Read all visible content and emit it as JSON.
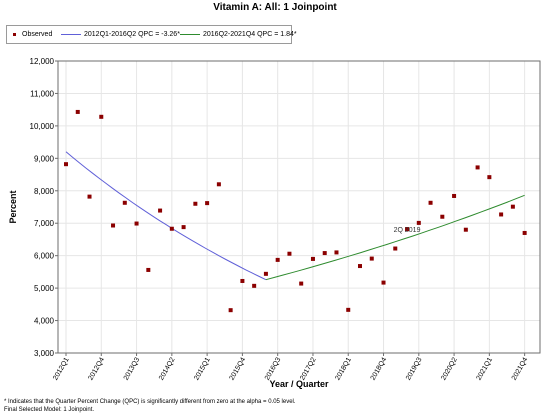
{
  "chart_data": {
    "type": "scatter",
    "title": "Vitamin A: All: 1 Joinpoint",
    "xlabel": "Year / Quarter",
    "ylabel": "Percent",
    "ylim": [
      3000,
      12000
    ],
    "yticks": [
      "3,000",
      "4,000",
      "5,000",
      "6,000",
      "7,000",
      "8,000",
      "9,000",
      "10,000",
      "11,000",
      "12,000"
    ],
    "ytick_values": [
      3000,
      4000,
      5000,
      6000,
      7000,
      8000,
      9000,
      10000,
      11000,
      12000
    ],
    "xtick_labels": [
      "2012Q1",
      "2012Q4",
      "2013Q3",
      "2014Q2",
      "2015Q1",
      "2015Q4",
      "2016Q3",
      "2017Q2",
      "2018Q1",
      "2018Q4",
      "2019Q3",
      "2020Q2",
      "2021Q1",
      "2021Q4"
    ],
    "legend_position": "top-left",
    "grid": true,
    "series": [
      {
        "name": "Observed",
        "color": "#8b0000",
        "x": [
          1,
          2,
          3,
          4,
          5,
          6,
          7,
          8,
          9,
          10,
          11,
          12,
          13,
          14,
          15,
          16,
          17,
          18,
          19,
          20,
          21,
          22,
          23,
          24,
          25,
          26,
          27,
          28,
          29,
          30,
          31,
          32,
          33,
          34,
          35,
          36,
          37,
          38,
          39,
          40
        ],
        "values": [
          8820,
          10430,
          7820,
          10280,
          6930,
          7630,
          6990,
          5560,
          7390,
          6830,
          6880,
          7600,
          7620,
          8200,
          4320,
          5220,
          5070,
          5440,
          5870,
          6060,
          5140,
          5900,
          6080,
          6100,
          4330,
          5680,
          5910,
          5170,
          6220,
          6820,
          7010,
          7630,
          7200,
          7840,
          6800,
          8720,
          8420,
          7270,
          7510,
          6700
        ]
      },
      {
        "name": "2012Q1-2016Q2 QPC = -3.26*",
        "color": "#6060d8",
        "type": "line",
        "x": [
          1,
          18
        ],
        "values": [
          9200,
          5260
        ]
      },
      {
        "name": "2016Q2-2021Q4 QPC = 1.84*",
        "color": "#2e8b2e",
        "type": "line",
        "x": [
          18,
          40
        ],
        "values": [
          5260,
          7860
        ]
      }
    ],
    "annotations": [
      {
        "text": "2Q 2019",
        "x": 30,
        "y": 6670
      }
    ]
  },
  "footnotes": {
    "line1": "* Indicates that the Quarter Percent Change (QPC) is significantly different from zero at the alpha = 0.05 level.",
    "line2": "Final Selected Model: 1 Joinpoint."
  }
}
